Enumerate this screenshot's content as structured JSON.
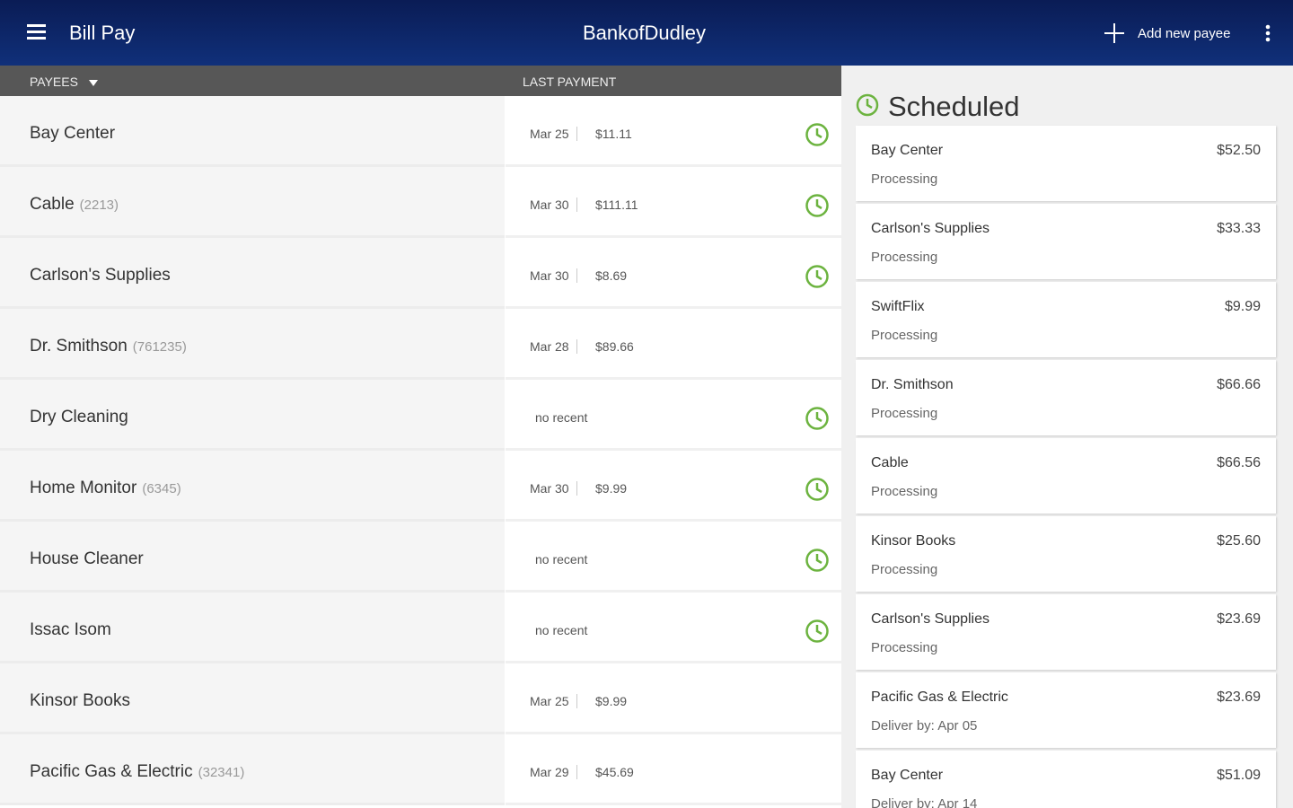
{
  "header": {
    "title": "Bill Pay",
    "brand": "BankofDudley",
    "add_payee": "Add new payee"
  },
  "columns": {
    "payees": "PAYEES",
    "last_payment": "LAST PAYMENT"
  },
  "payees": [
    {
      "name": "Bay Center",
      "date": "Mar 25",
      "amount": "$11.11",
      "scheduled": true
    },
    {
      "name": "Cable",
      "account": "(2213)",
      "date": "Mar 30",
      "amount": "$111.11",
      "scheduled": true
    },
    {
      "name": "Carlson's Supplies",
      "date": "Mar 30",
      "amount": "$8.69",
      "scheduled": true
    },
    {
      "name": "Dr. Smithson",
      "account": "(761235)",
      "date": "Mar 28",
      "amount": "$89.66",
      "scheduled": false
    },
    {
      "name": "Dry Cleaning",
      "note": "no recent",
      "scheduled": true
    },
    {
      "name": "Home Monitor",
      "account": "(6345)",
      "date": "Mar 30",
      "amount": "$9.99",
      "scheduled": true
    },
    {
      "name": "House Cleaner",
      "note": "no recent",
      "scheduled": true
    },
    {
      "name": "Issac Isom",
      "note": "no recent",
      "scheduled": true
    },
    {
      "name": "Kinsor Books",
      "date": "Mar 25",
      "amount": "$9.99",
      "scheduled": false
    },
    {
      "name": "Pacific Gas & Electric",
      "account": "(32341)",
      "date": "Mar 29",
      "amount": "$45.69",
      "scheduled": false
    }
  ],
  "scheduled": {
    "title": "Scheduled",
    "items": [
      {
        "name": "Bay Center",
        "amount": "$52.50",
        "status": "Processing"
      },
      {
        "name": "Carlson's Supplies",
        "amount": "$33.33",
        "status": "Processing"
      },
      {
        "name": "SwiftFlix",
        "amount": "$9.99",
        "status": "Processing"
      },
      {
        "name": "Dr. Smithson",
        "amount": "$66.66",
        "status": "Processing"
      },
      {
        "name": "Cable",
        "amount": "$66.56",
        "status": "Processing"
      },
      {
        "name": "Kinsor Books",
        "amount": "$25.60",
        "status": "Processing"
      },
      {
        "name": "Carlson's Supplies",
        "amount": "$23.69",
        "status": "Processing"
      },
      {
        "name": "Pacific Gas & Electric",
        "amount": "$23.69",
        "status": "Deliver by: Apr 05"
      },
      {
        "name": "Bay Center",
        "amount": "$51.09",
        "status": "Deliver by: Apr 14"
      }
    ]
  }
}
